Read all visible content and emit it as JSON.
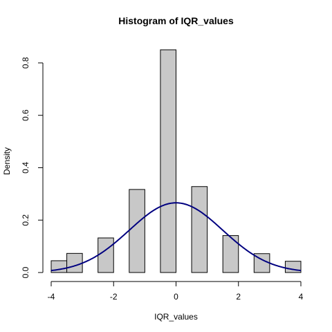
{
  "chart_data": {
    "type": "bar",
    "title": "Histogram of IQR_values",
    "xlabel": "IQR_values",
    "ylabel": "Density",
    "xlim": [
      -4,
      4
    ],
    "ylim": [
      0,
      0.85
    ],
    "x_ticks": [
      -4,
      -2,
      0,
      2,
      4
    ],
    "x_tick_labels": [
      "-4",
      "-2",
      "0",
      "2",
      "4"
    ],
    "y_ticks": [
      0,
      0.2,
      0.4,
      0.6,
      0.8
    ],
    "y_tick_labels": [
      "0.0",
      "0.2",
      "0.4",
      "0.6",
      "0.8"
    ],
    "bins": [
      {
        "start": -4.0,
        "end": -3.5,
        "density": 0.045
      },
      {
        "start": -3.5,
        "end": -3.0,
        "density": 0.073
      },
      {
        "start": -2.5,
        "end": -2.0,
        "density": 0.132
      },
      {
        "start": -1.5,
        "end": -1.0,
        "density": 0.317
      },
      {
        "start": -0.5,
        "end": 0.0,
        "density": 0.85
      },
      {
        "start": 0.5,
        "end": 1.0,
        "density": 0.328
      },
      {
        "start": 1.5,
        "end": 2.0,
        "density": 0.141
      },
      {
        "start": 2.5,
        "end": 3.0,
        "density": 0.072
      },
      {
        "start": 3.5,
        "end": 4.0,
        "density": 0.043
      }
    ],
    "density_curve": {
      "type": "normal",
      "mean": 0,
      "sd": 1.5
    },
    "grid": false,
    "colors": {
      "bar_fill": "#c8c8c8",
      "bar_stroke": "#000000",
      "curve": "#000080"
    }
  }
}
